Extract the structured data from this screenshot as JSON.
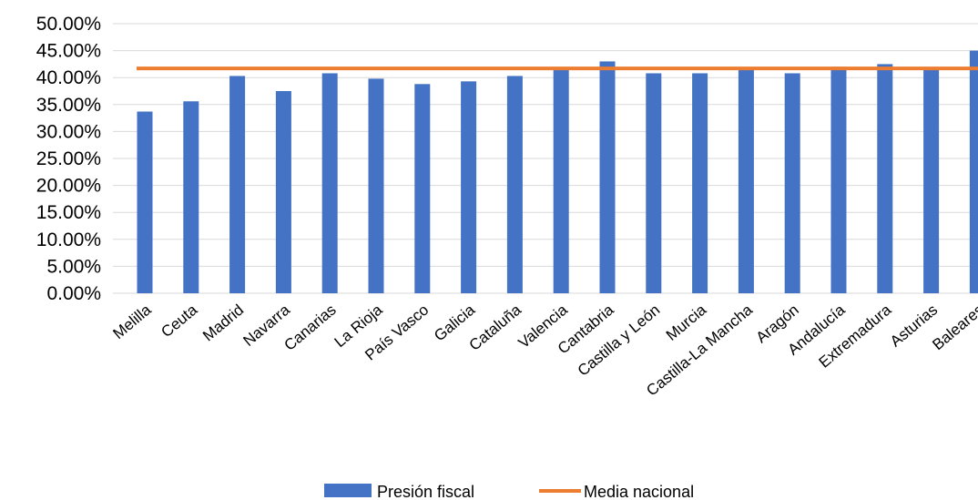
{
  "chart_data": {
    "type": "bar",
    "categories": [
      "Melilla",
      "Ceuta",
      "Madrid",
      "Navarra",
      "Canarias",
      "La Rioja",
      "País Vasco",
      "Galicia",
      "Cataluña",
      "Valencia",
      "Cantabria",
      "Castilla y León",
      "Murcia",
      "Castilla-La Mancha",
      "Aragón",
      "Andalucía",
      "Extremadura",
      "Asturias",
      "Baleares"
    ],
    "series": [
      {
        "name": "Presión fiscal",
        "type": "bar",
        "color": "#4472C4",
        "values": [
          33.7,
          35.6,
          40.3,
          37.5,
          40.8,
          39.8,
          38.8,
          39.3,
          40.3,
          41.8,
          43.0,
          40.8,
          40.8,
          41.8,
          40.8,
          42.0,
          42.5,
          41.8,
          45.0
        ]
      },
      {
        "name": "Media nacional",
        "type": "line",
        "color": "#ED7D31",
        "value": 41.7
      }
    ],
    "title": "",
    "xlabel": "",
    "ylabel": "",
    "ylim": [
      0,
      50
    ],
    "yticks": [
      "0.00%",
      "5.00%",
      "10.00%",
      "15.00%",
      "20.00%",
      "25.00%",
      "30.00%",
      "35.00%",
      "40.00%",
      "45.00%",
      "50.00%"
    ],
    "grid": true,
    "legend_position": "bottom"
  }
}
